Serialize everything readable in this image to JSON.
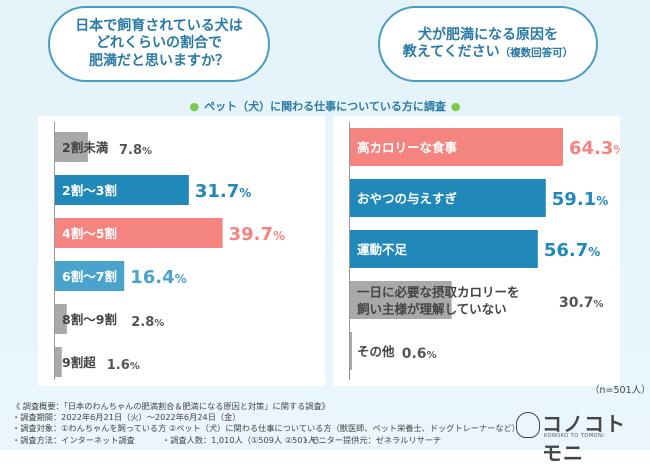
{
  "question_left": [
    "日本で飼育されている犬は",
    "どれくらいの割合で",
    "肥満だと思いますか？"
  ],
  "question_right": {
    "line1": "犬が肥満になる原因を",
    "line2": "教えてください",
    "line2_suffix": "（複数回答可）"
  },
  "subtitle": "ペット（犬）に関わる仕事についている方に調査",
  "sample_size": "（n=501人）",
  "notes": {
    "overview": "《 調査概要：「日本のわんちゃんの肥満割合＆肥満になる原因と対策」に関する調査》",
    "period": "・調査期間：2022年6月21日（火）～2022年6月24日（金）",
    "target": "・調査対象：①わんちゃんを飼っている方 ②ペット（犬）に関わる仕事についている方（獣医師、ペット栄養士、ドッグトレーナーなど）",
    "method": "・調査方法：インターネット調査",
    "count": "・調査人数：1,010人（①509人 ②501人）",
    "provider": "・モニター提供元：ゼネラルリサーチ"
  },
  "logo": {
    "name": "コノコトモニ",
    "sub": "KONOKO TO TOMONI"
  },
  "colors": {
    "blue": "#2189b9",
    "pink": "#f48480",
    "gray": "#a9a9a9",
    "light_blue": "#4aa3cc",
    "title": "#2a7aa5"
  },
  "chart_data": [
    {
      "type": "bar",
      "orientation": "horizontal",
      "categories": [
        "2割未満",
        "2割～3割",
        "4割～5割",
        "6割～7割",
        "8割～9割",
        "9割超"
      ],
      "values": [
        7.8,
        31.7,
        39.7,
        16.4,
        2.8,
        1.6
      ],
      "value_labels": [
        "7.8%",
        "31.7%",
        "39.7%",
        "16.4%",
        "2.8%",
        "1.6%"
      ],
      "xlim": [
        0,
        45
      ],
      "bar_colors": [
        "#a9a9a9",
        "#2189b9",
        "#f48480",
        "#4aa3cc",
        "#a9a9a9",
        "#a9a9a9"
      ]
    },
    {
      "type": "bar",
      "orientation": "horizontal",
      "categories": [
        "高カロリーな食事",
        "おやつの与えすぎ",
        "運動不足",
        "一日に必要な摂取カロリーを 飼い主様が理解していない",
        "その他"
      ],
      "values": [
        64.3,
        59.1,
        56.7,
        30.7,
        0.6
      ],
      "value_labels": [
        "64.3%",
        "59.1%",
        "56.7%",
        "30.7%",
        "0.6%"
      ],
      "xlim": [
        0,
        80
      ],
      "bar_colors": [
        "#f48480",
        "#2189b9",
        "#2189b9",
        "#a9a9a9",
        "#a9a9a9"
      ]
    }
  ]
}
